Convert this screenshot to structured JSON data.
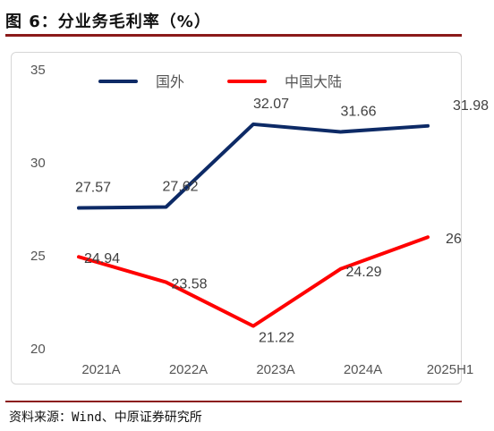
{
  "header": {
    "title": "图 6：分业务毛利率（%）"
  },
  "source": {
    "text": "资料来源：Wind、中原证券研究所"
  },
  "chart_data": {
    "type": "line",
    "title": "分业务毛利率（%）",
    "categories": [
      "2021A",
      "2022A",
      "2023A",
      "2024A",
      "2025H1"
    ],
    "series": [
      {
        "name": "国外",
        "color": "#0d2a66",
        "values": [
          27.57,
          27.62,
          32.07,
          31.66,
          31.98
        ],
        "labels": [
          "27.57",
          "27.62",
          "32.07",
          "31.66",
          "31.98"
        ]
      },
      {
        "name": "中国大陆",
        "color": "#ff0000",
        "values": [
          24.94,
          23.58,
          21.22,
          24.29,
          26
        ],
        "labels": [
          "24.94",
          "23.58",
          "21.22",
          "24.29",
          "26"
        ]
      }
    ],
    "ylim": [
      20,
      35
    ],
    "yticks": [
      "20",
      "25",
      "30",
      "35"
    ],
    "grid": false,
    "legend": "top"
  }
}
